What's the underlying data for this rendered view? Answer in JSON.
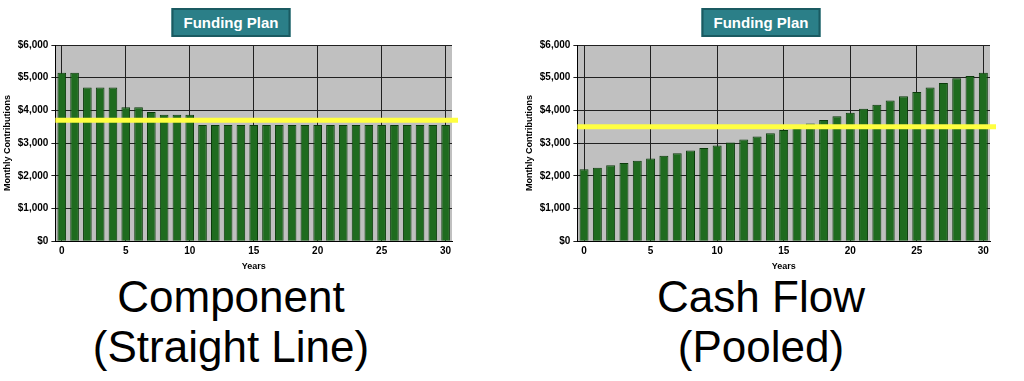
{
  "chart_data": [
    {
      "type": "bar",
      "title": "Funding Plan",
      "caption": "Component\n(Straight Line)",
      "x_label": "Years",
      "y_label": "Monthly Contributions",
      "categories": [
        "0",
        null,
        null,
        null,
        null,
        "5",
        null,
        null,
        null,
        null,
        "10",
        null,
        null,
        null,
        null,
        "15",
        null,
        null,
        null,
        null,
        "20",
        null,
        null,
        null,
        null,
        "25",
        null,
        null,
        null,
        null,
        "30"
      ],
      "values": [
        5150,
        5150,
        4700,
        4700,
        4700,
        4100,
        4100,
        3950,
        3870,
        3870,
        3870,
        3550,
        3550,
        3550,
        3550,
        3550,
        3550,
        3550,
        3550,
        3550,
        3550,
        3550,
        3550,
        3550,
        3550,
        3550,
        3550,
        3550,
        3550,
        3550,
        3550
      ],
      "color": "#1f6b1f",
      "ylim": [
        0,
        6000
      ],
      "yticks": [
        {
          "value": 0,
          "label": "$0"
        },
        {
          "value": 1000,
          "label": "$1,000"
        },
        {
          "value": 2000,
          "label": "$2,000"
        },
        {
          "value": 3000,
          "label": "$3,000"
        },
        {
          "value": 4000,
          "label": "$4,000"
        },
        {
          "value": 5000,
          "label": "$5,000"
        },
        {
          "value": 6000,
          "label": "$6,000"
        }
      ],
      "grid": true,
      "reference_line": 3700
    },
    {
      "type": "bar",
      "title": "Funding Plan",
      "caption": "Cash Flow\n(Pooled)",
      "x_label": "Years",
      "y_label": "Monthly Contributions",
      "categories": [
        "0",
        null,
        null,
        null,
        null,
        "5",
        null,
        null,
        null,
        null,
        "10",
        null,
        null,
        null,
        null,
        "15",
        null,
        null,
        null,
        null,
        "20",
        null,
        null,
        null,
        null,
        "25",
        null,
        null,
        null,
        null,
        "30"
      ],
      "values": [
        2200,
        2250,
        2320,
        2390,
        2460,
        2530,
        2610,
        2690,
        2770,
        2850,
        2930,
        3020,
        3110,
        3200,
        3300,
        3400,
        3500,
        3600,
        3710,
        3820,
        3930,
        4050,
        4170,
        4300,
        4430,
        4560,
        4700,
        4840,
        4980,
        5050,
        5150
      ],
      "color": "#1f6b1f",
      "ylim": [
        0,
        6000
      ],
      "yticks": [
        {
          "value": 0,
          "label": "$0"
        },
        {
          "value": 1000,
          "label": "$1,000"
        },
        {
          "value": 2000,
          "label": "$2,000"
        },
        {
          "value": 3000,
          "label": "$3,000"
        },
        {
          "value": 4000,
          "label": "$4,000"
        },
        {
          "value": 5000,
          "label": "$5,000"
        },
        {
          "value": 6000,
          "label": "$6,000"
        }
      ],
      "grid": true,
      "reference_line": 3500
    }
  ]
}
